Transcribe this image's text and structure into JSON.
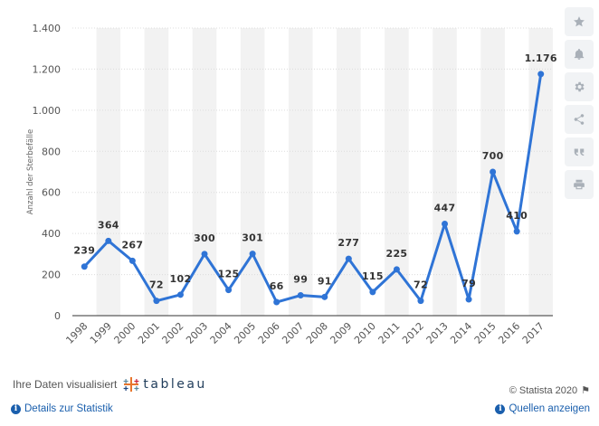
{
  "chart_data": {
    "type": "line",
    "x": [
      "1998",
      "1999",
      "2000",
      "2001",
      "2002",
      "2003",
      "2004",
      "2005",
      "2006",
      "2007",
      "2008",
      "2009",
      "2010",
      "2011",
      "2012",
      "2013",
      "2014",
      "2015",
      "2016",
      "2017"
    ],
    "values": [
      239,
      364,
      267,
      72,
      102,
      300,
      125,
      301,
      66,
      99,
      91,
      277,
      115,
      225,
      72,
      447,
      79,
      700,
      410,
      1176
    ],
    "value_labels": [
      "239",
      "364",
      "267",
      "72",
      "102",
      "300",
      "125",
      "301",
      "66",
      "99",
      "91",
      "277",
      "115",
      "225",
      "72",
      "447",
      "79",
      "700",
      "410",
      "1.176"
    ],
    "ylabel": "Anzahl der Sterbefälle",
    "ylim": [
      0,
      1400
    ],
    "yticks": [
      0,
      200,
      400,
      600,
      800,
      1000,
      1200,
      1400
    ],
    "ytick_labels": [
      "0",
      "200",
      "400",
      "600",
      "800",
      "1.000",
      "1.200",
      "1.400"
    ],
    "grid": true,
    "line_color": "#2f74d6",
    "band_color": "#f2f2f2"
  },
  "toolbar": {
    "icons": [
      "star-icon",
      "bell-icon",
      "gear-icon",
      "share-icon",
      "quote-icon",
      "print-icon"
    ]
  },
  "footer": {
    "visualized_by": "Ihre Daten visualisiert",
    "brand": "tableau",
    "copyright": "© Statista 2020",
    "details_link": "Details zur Statistik",
    "sources_link": "Quellen anzeigen"
  }
}
